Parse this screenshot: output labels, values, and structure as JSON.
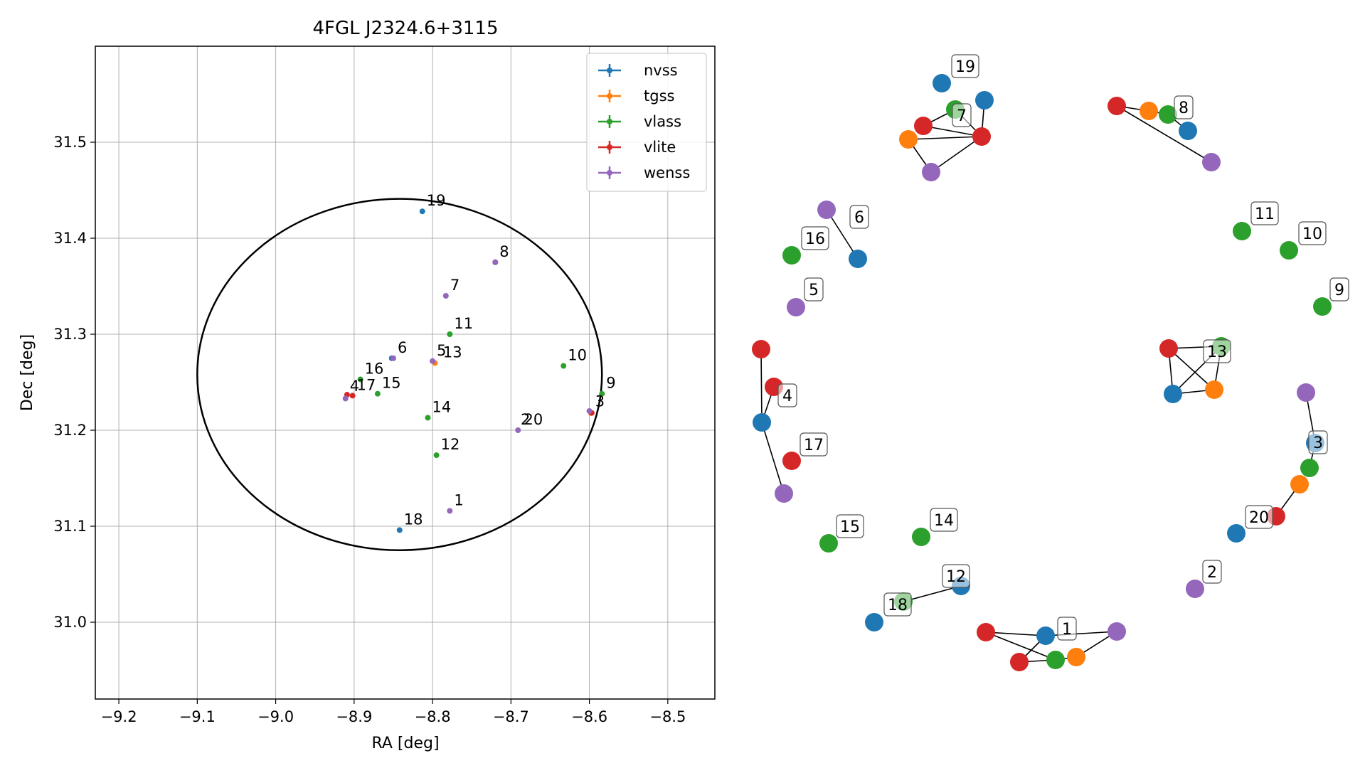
{
  "chart_data": [
    {
      "type": "scatter",
      "title": "4FGL J2324.6+3115",
      "xlabel": "RA [deg]",
      "ylabel": "Dec [deg]",
      "xlim": [
        -9.23,
        -8.44
      ],
      "ylim": [
        30.92,
        31.6
      ],
      "grid": true,
      "legend_position": "top-right",
      "x_ticks": [
        -9.2,
        -9.1,
        -9.0,
        -8.9,
        -8.8,
        -8.7,
        -8.6,
        -8.5
      ],
      "y_ticks": [
        31.0,
        31.1,
        31.2,
        31.3,
        31.4,
        31.5
      ],
      "x_tick_labels": [
        "−9.2",
        "−9.1",
        "−9.0",
        "−8.9",
        "−8.8",
        "−8.7",
        "−8.6",
        "−8.5"
      ],
      "y_tick_labels": [
        "31.0",
        "31.1",
        "31.2",
        "31.3",
        "31.4",
        "31.5"
      ],
      "ellipse": {
        "ra_center": -8.842,
        "dec_center": 31.258,
        "ra_half_width": 0.258,
        "dec_half_height": 0.183
      },
      "series": [
        {
          "name": "nvss",
          "color": "#1f77b4",
          "points": [
            [
              -8.813,
              31.428
            ],
            [
              -8.842,
              31.096
            ],
            [
              -8.852,
              31.275
            ]
          ]
        },
        {
          "name": "tgss",
          "color": "#ff7f0e",
          "points": [
            [
              -8.797,
              31.27
            ],
            [
              -8.598,
              31.218
            ]
          ]
        },
        {
          "name": "vlass",
          "color": "#2ca02c",
          "points": [
            [
              -8.778,
              31.3
            ],
            [
              -8.633,
              31.267
            ],
            [
              -8.584,
              31.238
            ],
            [
              -8.806,
              31.213
            ],
            [
              -8.795,
              31.174
            ],
            [
              -8.892,
              31.253
            ],
            [
              -8.87,
              31.238
            ]
          ]
        },
        {
          "name": "vlite",
          "color": "#d62728",
          "points": [
            [
              -8.72,
              31.375
            ],
            [
              -8.909,
              31.237
            ],
            [
              -8.902,
              31.236
            ],
            [
              -8.597,
              31.218
            ]
          ]
        },
        {
          "name": "wenss",
          "color": "#9467bd",
          "points": [
            [
              -8.783,
              31.34
            ],
            [
              -8.85,
              31.275
            ],
            [
              -8.8,
              31.272
            ],
            [
              -8.778,
              31.116
            ],
            [
              -8.691,
              31.2
            ],
            [
              -8.911,
              31.233
            ],
            [
              -8.6,
              31.22
            ],
            [
              -8.72,
              31.375
            ]
          ]
        }
      ],
      "labels": [
        {
          "text": "19",
          "x": -8.813,
          "y": 31.428
        },
        {
          "text": "8",
          "x": -8.72,
          "y": 31.375
        },
        {
          "text": "7",
          "x": -8.783,
          "y": 31.34
        },
        {
          "text": "11",
          "x": -8.778,
          "y": 31.3
        },
        {
          "text": "6",
          "x": -8.85,
          "y": 31.275
        },
        {
          "text": "5",
          "x": -8.8,
          "y": 31.272
        },
        {
          "text": "13",
          "x": -8.792,
          "y": 31.27
        },
        {
          "text": "10",
          "x": -8.633,
          "y": 31.267
        },
        {
          "text": "16",
          "x": -8.892,
          "y": 31.253
        },
        {
          "text": "9",
          "x": -8.584,
          "y": 31.238
        },
        {
          "text": "4",
          "x": -8.911,
          "y": 31.235
        },
        {
          "text": "17",
          "x": -8.902,
          "y": 31.236
        },
        {
          "text": "15",
          "x": -8.87,
          "y": 31.238
        },
        {
          "text": "3",
          "x": -8.598,
          "y": 31.219
        },
        {
          "text": "14",
          "x": -8.806,
          "y": 31.213
        },
        {
          "text": "2",
          "x": -8.693,
          "y": 31.2
        },
        {
          "text": "20",
          "x": -8.689,
          "y": 31.2
        },
        {
          "text": "12",
          "x": -8.795,
          "y": 31.174
        },
        {
          "text": "1",
          "x": -8.778,
          "y": 31.116
        },
        {
          "text": "18",
          "x": -8.842,
          "y": 31.096
        }
      ]
    },
    {
      "type": "graph",
      "description_free": true,
      "nodes": [
        {
          "id": "19-nvss-a",
          "color": "#1f77b4"
        },
        {
          "id": "19-nvss-b",
          "color": "#1f77b4"
        },
        {
          "id": "7-vlass",
          "color": "#2ca02c"
        },
        {
          "id": "7-vlite-a",
          "color": "#d62728"
        },
        {
          "id": "7-vlite-b",
          "color": "#d62728"
        },
        {
          "id": "7-tgss",
          "color": "#ff7f0e"
        },
        {
          "id": "7-wenss",
          "color": "#9467bd"
        },
        {
          "id": "8-vlite",
          "color": "#d62728"
        },
        {
          "id": "8-tgss",
          "color": "#ff7f0e"
        },
        {
          "id": "8-vlass",
          "color": "#2ca02c"
        },
        {
          "id": "8-nvss",
          "color": "#1f77b4"
        },
        {
          "id": "8-wenss",
          "color": "#9467bd"
        },
        {
          "id": "6-wenss",
          "color": "#9467bd"
        },
        {
          "id": "6-nvss",
          "color": "#1f77b4"
        },
        {
          "id": "16-vlass",
          "color": "#2ca02c"
        },
        {
          "id": "5-wenss",
          "color": "#9467bd"
        },
        {
          "id": "11-vlass",
          "color": "#2ca02c"
        },
        {
          "id": "10-vlass",
          "color": "#2ca02c"
        },
        {
          "id": "9-vlass",
          "color": "#2ca02c"
        },
        {
          "id": "4-vlite-a",
          "color": "#d62728"
        },
        {
          "id": "4-vlite-b",
          "color": "#d62728"
        },
        {
          "id": "4-nvss",
          "color": "#1f77b4"
        },
        {
          "id": "4-wenss",
          "color": "#9467bd"
        },
        {
          "id": "17-vlite",
          "color": "#d62728"
        },
        {
          "id": "13-vlass",
          "color": "#2ca02c"
        },
        {
          "id": "13-vlite",
          "color": "#d62728"
        },
        {
          "id": "13-nvss",
          "color": "#1f77b4"
        },
        {
          "id": "13-tgss",
          "color": "#ff7f0e"
        },
        {
          "id": "3-wenss",
          "color": "#9467bd"
        },
        {
          "id": "3-nvss",
          "color": "#1f77b4"
        },
        {
          "id": "3-vlass",
          "color": "#2ca02c"
        },
        {
          "id": "3-tgss",
          "color": "#ff7f0e"
        },
        {
          "id": "3-vlite",
          "color": "#d62728"
        },
        {
          "id": "20-nvss",
          "color": "#1f77b4"
        },
        {
          "id": "15-vlass",
          "color": "#2ca02c"
        },
        {
          "id": "14-vlass",
          "color": "#2ca02c"
        },
        {
          "id": "12-nvss",
          "color": "#1f77b4"
        },
        {
          "id": "18-vlass",
          "color": "#2ca02c"
        },
        {
          "id": "18-nvss",
          "color": "#1f77b4"
        },
        {
          "id": "2-wenss",
          "color": "#9467bd"
        },
        {
          "id": "1-vlite-a",
          "color": "#d62728"
        },
        {
          "id": "1-nvss",
          "color": "#1f77b4"
        },
        {
          "id": "1-wenss",
          "color": "#9467bd"
        },
        {
          "id": "1-vlite-b",
          "color": "#d62728"
        },
        {
          "id": "1-vlass",
          "color": "#2ca02c"
        },
        {
          "id": "1-tgss",
          "color": "#ff7f0e"
        }
      ],
      "edges": [
        [
          "19-nvss-b",
          "7-vlite-b"
        ],
        [
          "7-vlite-a",
          "7-vlass"
        ],
        [
          "7-vlite-a",
          "7-vlite-b"
        ],
        [
          "7-tgss",
          "7-vlite-b"
        ],
        [
          "7-tgss",
          "7-wenss"
        ],
        [
          "7-wenss",
          "7-vlite-b"
        ],
        [
          "7-vlass",
          "7-vlite-b"
        ],
        [
          "8-vlite",
          "8-tgss"
        ],
        [
          "8-tgss",
          "8-vlass"
        ],
        [
          "8-vlass",
          "8-nvss"
        ],
        [
          "8-vlite",
          "8-wenss"
        ],
        [
          "6-wenss",
          "6-nvss"
        ],
        [
          "4-vlite-a",
          "4-nvss"
        ],
        [
          "4-vlite-b",
          "4-nvss"
        ],
        [
          "4-nvss",
          "4-wenss"
        ],
        [
          "13-vlite",
          "13-vlass"
        ],
        [
          "13-vlite",
          "13-nvss"
        ],
        [
          "13-vlite",
          "13-tgss"
        ],
        [
          "13-nvss",
          "13-vlass"
        ],
        [
          "13-nvss",
          "13-tgss"
        ],
        [
          "13-vlass",
          "13-tgss"
        ],
        [
          "3-wenss",
          "3-nvss"
        ],
        [
          "3-nvss",
          "3-vlass"
        ],
        [
          "3-tgss",
          "3-vlite"
        ],
        [
          "18-vlass",
          "12-nvss"
        ],
        [
          "1-vlite-a",
          "1-nvss"
        ],
        [
          "1-vlite-a",
          "1-vlass"
        ],
        [
          "1-nvss",
          "1-wenss"
        ],
        [
          "1-nvss",
          "1-vlite-b"
        ],
        [
          "1-vlite-b",
          "1-vlass"
        ],
        [
          "1-vlass",
          "1-tgss"
        ],
        [
          "1-wenss",
          "1-tgss"
        ]
      ],
      "labels": [
        "19",
        "7",
        "8",
        "6",
        "16",
        "5",
        "11",
        "10",
        "9",
        "4",
        "17",
        "13",
        "3",
        "20",
        "15",
        "14",
        "12",
        "18",
        "2",
        "1"
      ]
    }
  ]
}
